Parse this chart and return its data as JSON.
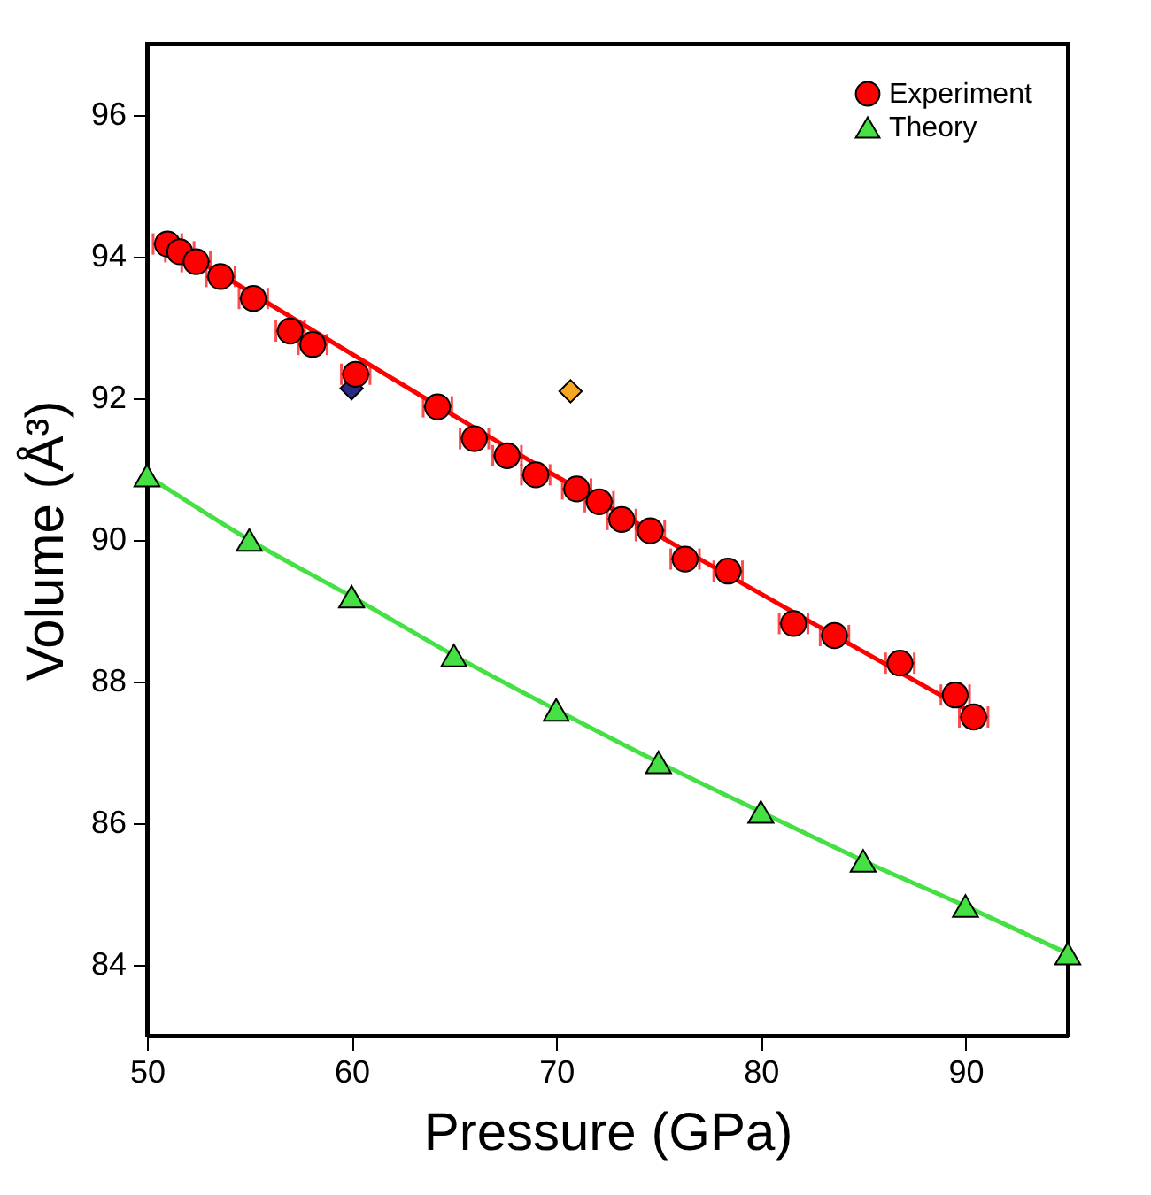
{
  "chart_data": {
    "type": "scatter",
    "xlabel": "Pressure (GPa)",
    "ylabel": "Volume (Å³)",
    "xlim": [
      50,
      95
    ],
    "xticks": [
      50,
      60,
      70,
      80,
      90
    ],
    "ylim": [
      83,
      97
    ],
    "yticks": [
      84,
      86,
      88,
      90,
      92,
      94,
      96
    ],
    "grid": false,
    "legend": "top right",
    "series": [
      {
        "name": "Experiment",
        "marker": "circle",
        "color": "#ff0000",
        "x": [
          51.0,
          51.6,
          52.4,
          53.6,
          55.2,
          57.0,
          58.1,
          60.2,
          64.2,
          66.0,
          67.6,
          69.0,
          71.0,
          72.1,
          73.2,
          74.6,
          76.3,
          78.4,
          81.6,
          83.6,
          86.8,
          89.5,
          90.4
        ],
        "values": [
          94.18,
          94.07,
          93.93,
          93.72,
          93.41,
          92.95,
          92.76,
          92.34,
          91.88,
          91.43,
          91.19,
          90.92,
          90.72,
          90.54,
          90.29,
          90.13,
          89.73,
          89.56,
          88.82,
          88.65,
          88.26,
          87.81,
          87.5
        ],
        "xerrors": [
          0.7,
          0.7,
          0.7,
          0.7,
          0.7,
          0.7,
          0.7,
          0.7,
          0.7,
          0.7,
          0.7,
          0.7,
          0.7,
          0.7,
          0.7,
          0.7,
          0.7,
          0.7,
          0.7,
          0.7,
          0.7,
          0.7,
          0.7
        ]
      },
      {
        "type": "line",
        "marker": "none",
        "line_style": "solid",
        "color": "#ff0000",
        "x": [
          50.5,
          70,
          91
        ],
        "values": [
          94.3,
          90.9,
          87.45
        ]
      },
      {
        "name": "Theory",
        "type": "line",
        "line_style": "solid",
        "marker": "triangle",
        "color": "#44e044",
        "x": [
          50,
          55,
          60,
          65,
          70,
          75,
          80,
          85,
          90,
          95
        ],
        "values": [
          90.91,
          90.0,
          89.2,
          88.37,
          87.6,
          86.86,
          86.16,
          85.47,
          84.83,
          84.16
        ]
      },
      {
        "type": "scatter",
        "marker": "diamond",
        "color": "#2a2a80",
        "x": [
          60.0
        ],
        "values": [
          92.14
        ]
      },
      {
        "type": "scatter",
        "marker": "diamond",
        "color": "#f5a623",
        "x": [
          70.7
        ],
        "values": [
          92.1
        ]
      }
    ]
  }
}
